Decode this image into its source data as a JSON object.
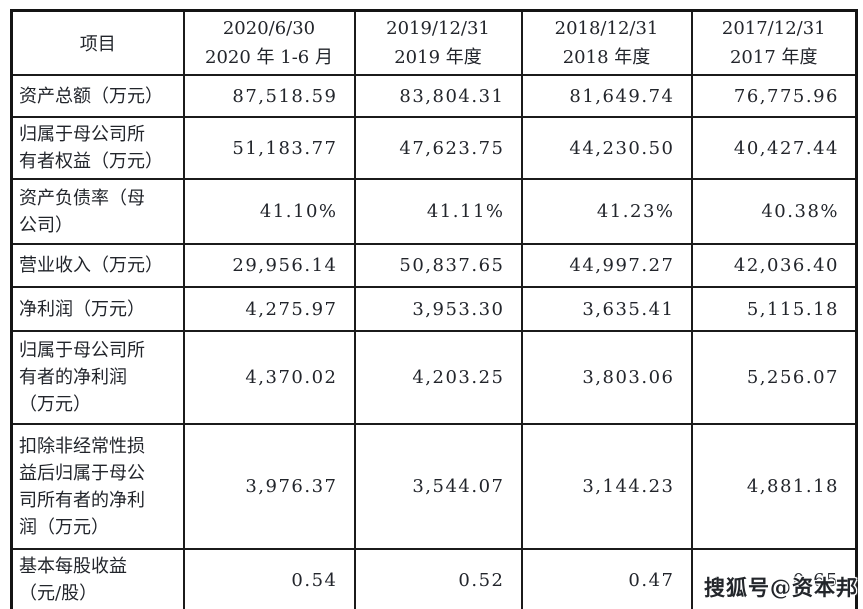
{
  "table": {
    "header": {
      "item_label": "项目",
      "columns": [
        {
          "line1": "2020/6/30",
          "line2": "2020 年 1-6 月"
        },
        {
          "line1": "2019/12/31",
          "line2": "2019 年度"
        },
        {
          "line1": "2018/12/31",
          "line2": "2018 年度"
        },
        {
          "line1": "2017/12/31",
          "line2": "2017 年度"
        }
      ]
    },
    "rows": [
      {
        "label": "资产总额（万元）",
        "values": [
          "87,518.59",
          "83,804.31",
          "81,649.74",
          "76,775.96"
        ]
      },
      {
        "label": "归属于母公司所有者权益（万元）",
        "values": [
          "51,183.77",
          "47,623.75",
          "44,230.50",
          "40,427.44"
        ]
      },
      {
        "label": "资产负债率（母公司）",
        "values": [
          "41.10%",
          "41.11%",
          "41.23%",
          "40.38%"
        ]
      },
      {
        "label": "营业收入（万元）",
        "values": [
          "29,956.14",
          "50,837.65",
          "44,997.27",
          "42,036.40"
        ]
      },
      {
        "label": "净利润（万元）",
        "values": [
          "4,275.97",
          "3,953.30",
          "3,635.41",
          "5,115.18"
        ]
      },
      {
        "label": "归属于母公司所有者的净利润（万元）",
        "values": [
          "4,370.02",
          "4,203.25",
          "3,803.06",
          "5,256.07"
        ]
      },
      {
        "label": "扣除非经常性损益后归属于母公司所有者的净利润（万元）",
        "values": [
          "3,976.37",
          "3,544.07",
          "3,144.23",
          "4,881.18"
        ]
      },
      {
        "label": "基本每股收益（元/股）",
        "values": [
          "0.54",
          "0.52",
          "0.47",
          "0.65"
        ]
      }
    ]
  },
  "watermark": {
    "text": "搜狐号@资本邦"
  },
  "colors": {
    "background": "#ffffff",
    "border": "#1b1b1b",
    "outer_border": "#141414",
    "text": "#22252b"
  }
}
